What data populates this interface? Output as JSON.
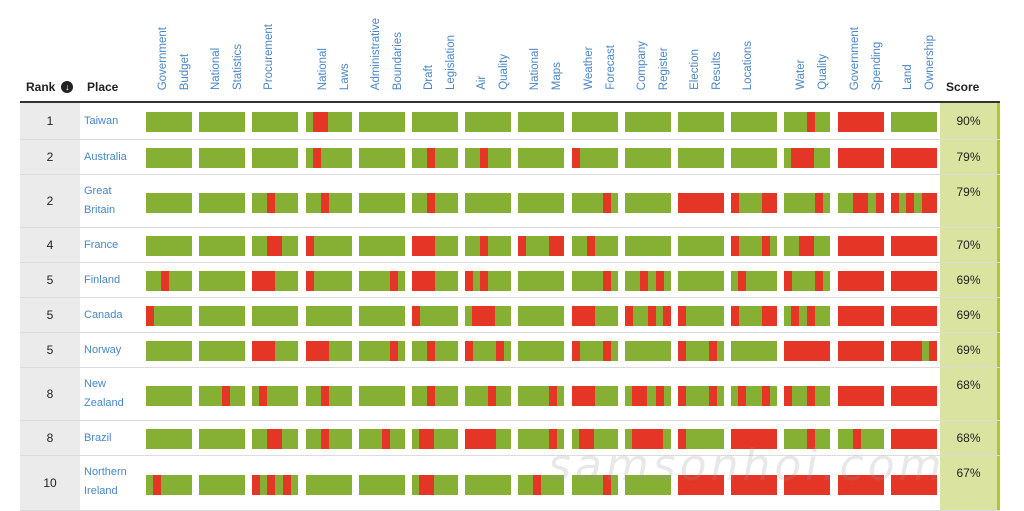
{
  "header": {
    "rank_label": "Rank",
    "sort_icon": "sort-down-icon",
    "place_label": "Place",
    "score_label": "Score"
  },
  "categories": [
    [
      "Government",
      "Budget"
    ],
    [
      "National",
      "Statistics"
    ],
    [
      "Procurement"
    ],
    [
      "National",
      "Laws"
    ],
    [
      "Administrative",
      "Boundaries"
    ],
    [
      "Draft",
      "Legislation"
    ],
    [
      "Air",
      "Quality"
    ],
    [
      "National",
      "Maps"
    ],
    [
      "Weather",
      "Forecast"
    ],
    [
      "Company",
      "Register"
    ],
    [
      "Election",
      "Results"
    ],
    [
      "Locations"
    ],
    [
      "Water",
      "Quality"
    ],
    [
      "Government",
      "Spending"
    ],
    [
      "Land",
      "Ownership"
    ]
  ],
  "colors": {
    "open": "#86b034",
    "closed": "#e53526",
    "score_bg": "#dbe3a0",
    "link": "#4a86c5"
  },
  "rows": [
    {
      "rank": "1",
      "place": [
        "Taiwan"
      ],
      "score": "90%",
      "cells": [
        [],
        [],
        [],
        [
          [
            7,
            15
          ]
        ],
        [],
        [],
        [],
        [],
        [],
        [],
        [],
        [],
        [
          [
            23,
            8
          ]
        ],
        [
          [
            0,
            46
          ]
        ],
        []
      ]
    },
    {
      "rank": "2",
      "place": [
        "Australia"
      ],
      "score": "79%",
      "cells": [
        [],
        [],
        [],
        [
          [
            7,
            8
          ]
        ],
        [],
        [
          [
            15,
            8
          ]
        ],
        [
          [
            15,
            8
          ]
        ],
        [],
        [
          [
            0,
            8
          ]
        ],
        [],
        [],
        [],
        [
          [
            7,
            23
          ]
        ],
        [
          [
            0,
            46
          ]
        ],
        [
          [
            0,
            46
          ]
        ]
      ]
    },
    {
      "rank": "2",
      "place": [
        "Great",
        "Britain"
      ],
      "score": "79%",
      "cells": [
        [],
        [],
        [
          [
            15,
            8
          ]
        ],
        [
          [
            15,
            8
          ]
        ],
        [],
        [
          [
            15,
            8
          ]
        ],
        [],
        [],
        [
          [
            31,
            8
          ]
        ],
        [],
        [
          [
            0,
            46
          ]
        ],
        [
          [
            0,
            8
          ],
          [
            31,
            15
          ]
        ],
        [
          [
            31,
            8
          ]
        ],
        [
          [
            15,
            15
          ],
          [
            38,
            8
          ]
        ],
        [
          [
            0,
            8
          ],
          [
            15,
            8
          ],
          [
            31,
            15
          ]
        ]
      ]
    },
    {
      "rank": "4",
      "place": [
        "France"
      ],
      "score": "70%",
      "cells": [
        [],
        [],
        [
          [
            15,
            15
          ]
        ],
        [
          [
            0,
            8
          ]
        ],
        [],
        [
          [
            0,
            23
          ]
        ],
        [
          [
            15,
            8
          ]
        ],
        [
          [
            0,
            8
          ],
          [
            31,
            15
          ]
        ],
        [
          [
            15,
            8
          ]
        ],
        [],
        [],
        [
          [
            0,
            8
          ],
          [
            31,
            8
          ]
        ],
        [
          [
            15,
            15
          ]
        ],
        [
          [
            0,
            46
          ]
        ],
        [
          [
            0,
            46
          ]
        ]
      ]
    },
    {
      "rank": "5",
      "place": [
        "Finland"
      ],
      "score": "69%",
      "cells": [
        [
          [
            15,
            8
          ]
        ],
        [],
        [
          [
            0,
            23
          ]
        ],
        [
          [
            0,
            8
          ]
        ],
        [
          [
            31,
            8
          ]
        ],
        [
          [
            0,
            23
          ]
        ],
        [
          [
            0,
            8
          ],
          [
            15,
            8
          ]
        ],
        [],
        [
          [
            31,
            8
          ]
        ],
        [
          [
            15,
            8
          ],
          [
            31,
            8
          ]
        ],
        [],
        [
          [
            7,
            8
          ]
        ],
        [
          [
            0,
            8
          ],
          [
            31,
            8
          ]
        ],
        [
          [
            0,
            46
          ]
        ],
        [
          [
            0,
            46
          ]
        ]
      ]
    },
    {
      "rank": "5",
      "place": [
        "Canada"
      ],
      "score": "69%",
      "cells": [
        [
          [
            0,
            8
          ]
        ],
        [],
        [],
        [],
        [],
        [
          [
            0,
            8
          ]
        ],
        [
          [
            7,
            8
          ],
          [
            15,
            15
          ]
        ],
        [],
        [
          [
            0,
            23
          ]
        ],
        [
          [
            0,
            8
          ],
          [
            23,
            8
          ],
          [
            38,
            8
          ]
        ],
        [
          [
            0,
            8
          ]
        ],
        [
          [
            0,
            8
          ],
          [
            31,
            15
          ]
        ],
        [
          [
            7,
            8
          ],
          [
            23,
            8
          ]
        ],
        [
          [
            0,
            46
          ]
        ],
        [
          [
            0,
            46
          ]
        ]
      ]
    },
    {
      "rank": "5",
      "place": [
        "Norway"
      ],
      "score": "69%",
      "cells": [
        [],
        [],
        [
          [
            0,
            23
          ]
        ],
        [
          [
            0,
            23
          ]
        ],
        [
          [
            31,
            8
          ]
        ],
        [
          [
            15,
            8
          ]
        ],
        [
          [
            0,
            8
          ],
          [
            31,
            8
          ]
        ],
        [],
        [
          [
            0,
            8
          ],
          [
            31,
            8
          ]
        ],
        [],
        [
          [
            0,
            8
          ],
          [
            31,
            8
          ]
        ],
        [],
        [
          [
            0,
            46
          ]
        ],
        [
          [
            0,
            46
          ]
        ],
        [
          [
            0,
            31
          ],
          [
            38,
            8
          ]
        ]
      ]
    },
    {
      "rank": "8",
      "place": [
        "New",
        "Zealand"
      ],
      "score": "68%",
      "cells": [
        [],
        [
          [
            23,
            8
          ]
        ],
        [
          [
            7,
            8
          ]
        ],
        [
          [
            15,
            8
          ]
        ],
        [],
        [
          [
            15,
            8
          ]
        ],
        [
          [
            23,
            8
          ]
        ],
        [
          [
            31,
            8
          ]
        ],
        [
          [
            0,
            23
          ]
        ],
        [
          [
            7,
            15
          ],
          [
            31,
            8
          ]
        ],
        [
          [
            0,
            8
          ],
          [
            31,
            8
          ]
        ],
        [
          [
            7,
            8
          ],
          [
            31,
            8
          ]
        ],
        [
          [
            0,
            8
          ],
          [
            23,
            8
          ]
        ],
        [
          [
            0,
            46
          ]
        ],
        [
          [
            0,
            46
          ]
        ]
      ]
    },
    {
      "rank": "8",
      "place": [
        "Brazil"
      ],
      "score": "68%",
      "cells": [
        [],
        [],
        [
          [
            15,
            15
          ]
        ],
        [
          [
            15,
            8
          ]
        ],
        [
          [
            23,
            8
          ]
        ],
        [
          [
            7,
            15
          ]
        ],
        [
          [
            0,
            31
          ]
        ],
        [
          [
            31,
            8
          ]
        ],
        [
          [
            7,
            15
          ]
        ],
        [
          [
            7,
            31
          ]
        ],
        [
          [
            0,
            8
          ]
        ],
        [
          [
            0,
            46
          ]
        ],
        [
          [
            23,
            8
          ]
        ],
        [
          [
            15,
            8
          ]
        ],
        [
          [
            0,
            46
          ]
        ]
      ]
    },
    {
      "rank": "10",
      "place": [
        "Northern",
        "Ireland"
      ],
      "score": "67%",
      "cells": [
        [
          [
            7,
            8
          ]
        ],
        [],
        [
          [
            0,
            8
          ],
          [
            15,
            8
          ],
          [
            31,
            8
          ]
        ],
        [],
        [],
        [
          [
            7,
            15
          ]
        ],
        [],
        [
          [
            15,
            8
          ]
        ],
        [
          [
            31,
            8
          ]
        ],
        [],
        [
          [
            0,
            46
          ]
        ],
        [
          [
            0,
            46
          ]
        ],
        [
          [
            0,
            46
          ]
        ],
        [
          [
            0,
            46
          ]
        ],
        [
          [
            0,
            46
          ]
        ]
      ]
    }
  ]
}
